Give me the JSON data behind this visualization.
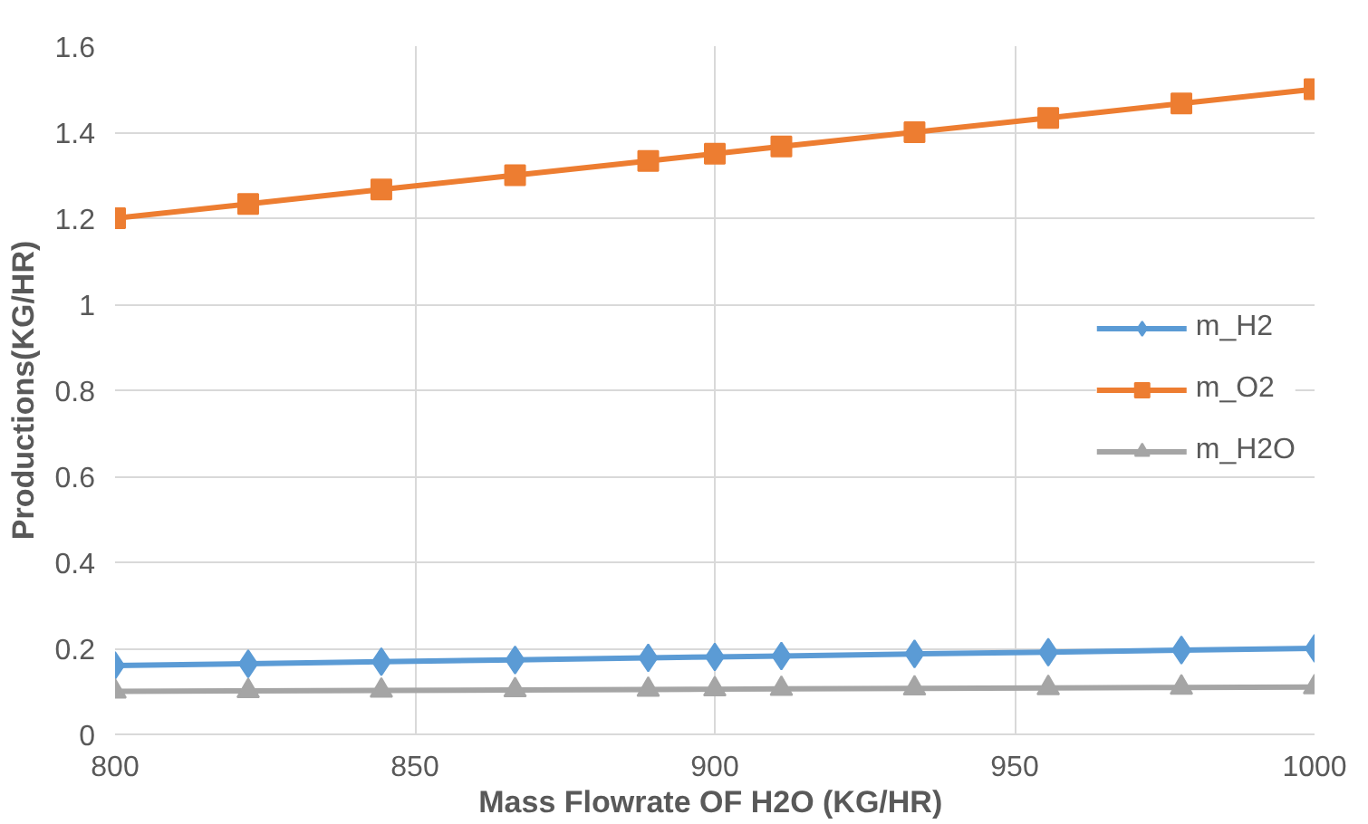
{
  "chart_data": {
    "type": "line",
    "xlabel": "Mass Flowrate OF H2O  (KG/HR)",
    "ylabel": "Productions(KG/HR)",
    "x": [
      800,
      822.2,
      844.4,
      866.7,
      888.9,
      900,
      911.1,
      933.3,
      955.6,
      977.8,
      1000
    ],
    "series": [
      {
        "name": "m_H2",
        "color": "#5b9bd5",
        "marker": "diamond",
        "values": [
          0.16,
          0.164,
          0.169,
          0.173,
          0.178,
          0.18,
          0.182,
          0.187,
          0.191,
          0.196,
          0.2
        ]
      },
      {
        "name": "m_O2",
        "color": "#ed7d31",
        "marker": "square",
        "values": [
          1.2,
          1.233,
          1.267,
          1.3,
          1.333,
          1.35,
          1.367,
          1.4,
          1.433,
          1.467,
          1.5
        ]
      },
      {
        "name": "m_H2O",
        "color": "#a5a5a5",
        "marker": "triangle",
        "values": [
          0.1,
          0.101,
          0.102,
          0.103,
          0.104,
          0.105,
          0.106,
          0.107,
          0.108,
          0.109,
          0.11
        ]
      }
    ],
    "xlim": [
      800,
      1000
    ],
    "xticks": [
      800,
      850,
      900,
      950,
      1000
    ],
    "ylim": [
      0,
      1.6
    ],
    "yticks": [
      0,
      {
        "value": 0.2,
        "label": "0.2"
      },
      {
        "value": 0.4,
        "label": "0.4"
      },
      {
        "value": 0.6,
        "label": "0.6"
      },
      {
        "value": 0.8,
        "label": "0.8"
      },
      1,
      {
        "value": 1.2,
        "label": "1.2"
      },
      {
        "value": 1.4,
        "label": "1.4"
      },
      {
        "value": 1.6,
        "label": "1.6"
      }
    ],
    "grid": true,
    "legend": "right",
    "line_style": "solid"
  }
}
